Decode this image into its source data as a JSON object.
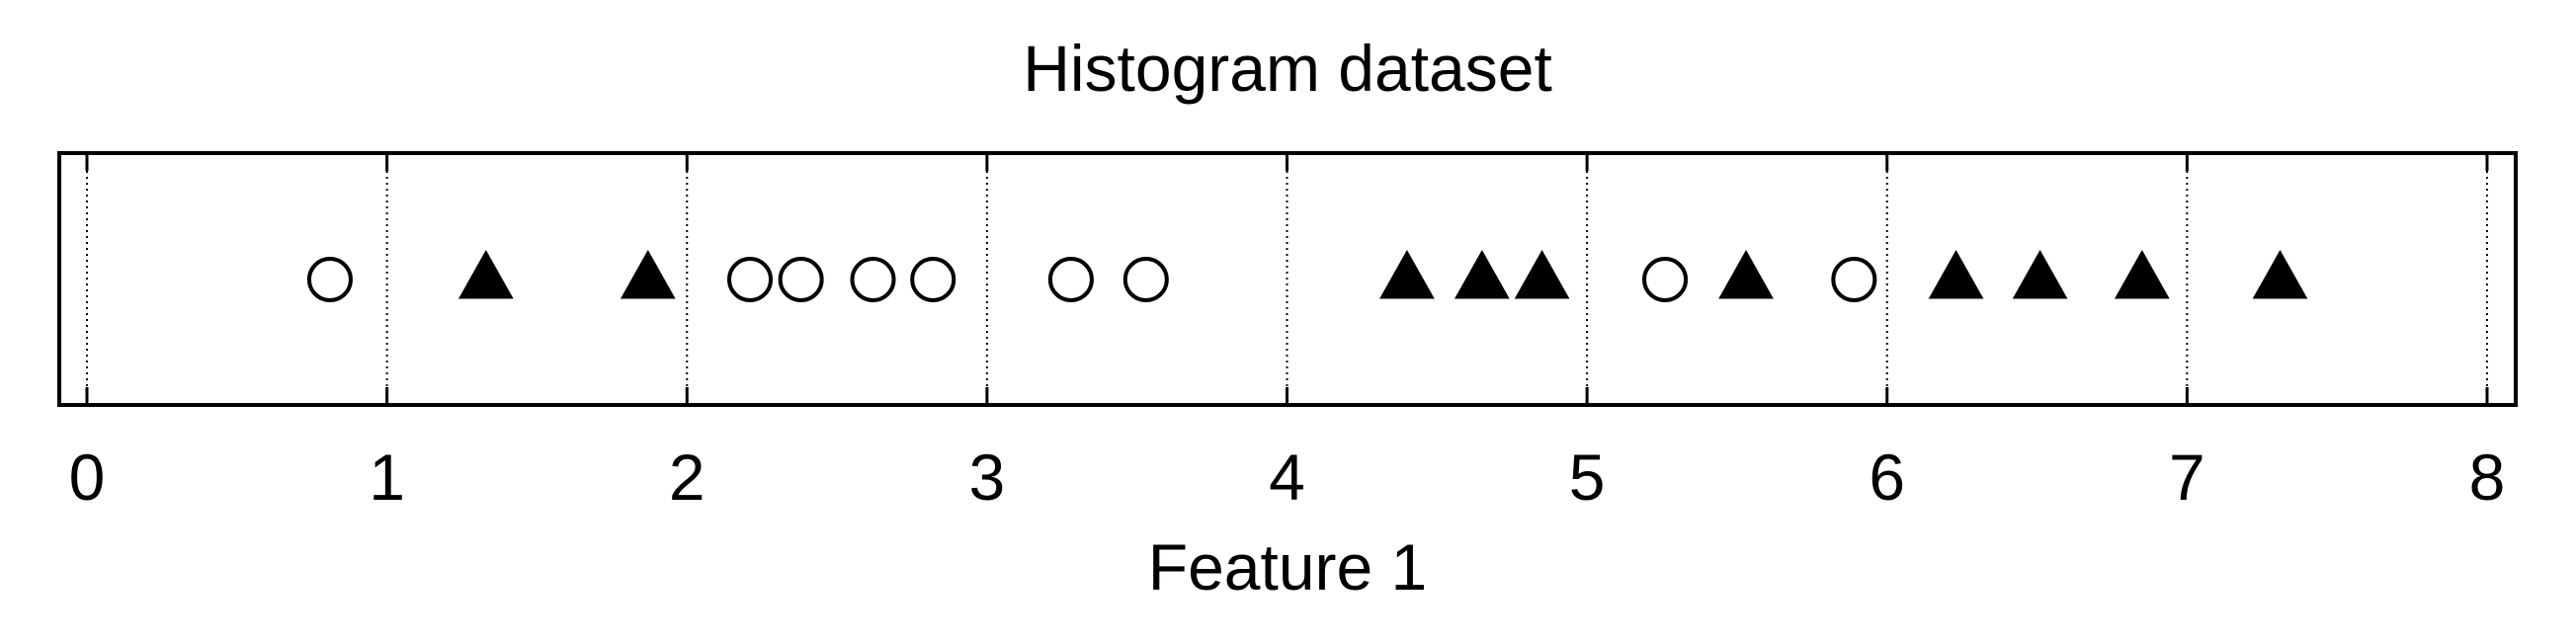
{
  "chart_data": {
    "type": "scatter",
    "title": "Histogram dataset",
    "xlabel": "Feature 1",
    "ylabel": "",
    "xlim": [
      0,
      8
    ],
    "xticks": [
      "0",
      "1",
      "2",
      "3",
      "4",
      "5",
      "6",
      "7",
      "8"
    ],
    "grid": "vertical dotted lines at integer ticks",
    "legend": "none",
    "colors": {
      "marker": "#000000",
      "background": "#ffffff"
    },
    "series": [
      {
        "marker": "circle-open",
        "x": [
          0.81,
          2.21,
          2.38,
          2.62,
          2.82,
          3.28,
          3.53,
          5.26,
          5.89
        ]
      },
      {
        "marker": "triangle-filled",
        "x": [
          1.33,
          1.87,
          4.4,
          4.65,
          4.85,
          5.53,
          6.23,
          6.51,
          6.85,
          7.31
        ]
      }
    ]
  }
}
